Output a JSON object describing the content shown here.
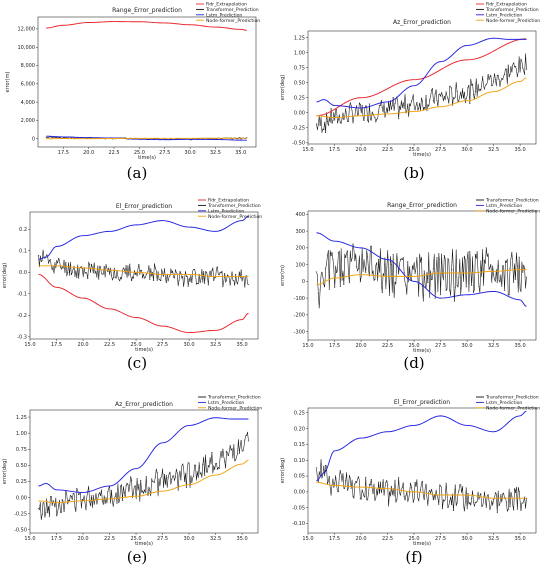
{
  "colors": {
    "rdr": "#e8232a",
    "transformer": "#111111",
    "lstm": "#2424e0",
    "nodeformer": "#f2a20c"
  },
  "chart_data": [
    {
      "caption": "(a)",
      "type": "line",
      "title": "Range_Error_prediction",
      "xlabel": "time(s)",
      "ylabel": "error(m)",
      "xlim": [
        15,
        36.5
      ],
      "ylim": [
        -900,
        13300
      ],
      "xticks": [
        "17.5",
        "20.0",
        "22.5",
        "25.0",
        "27.5",
        "30.0",
        "32.5",
        "35.0"
      ],
      "xtick_values": [
        17.5,
        20.0,
        22.5,
        25.0,
        27.5,
        30.0,
        32.5,
        35.0
      ],
      "yticks": [
        "0",
        "2,000",
        "4,000",
        "6,000",
        "8,000",
        "10,000",
        "12,000"
      ],
      "ytick_values": [
        0,
        2000,
        4000,
        6000,
        8000,
        10000,
        12000
      ],
      "legend": {
        "position": "top-right",
        "entries": [
          "Rdr_Extrapolation",
          "Transformer_Prediction",
          "Lstm_Prediction",
          "Node-former_Prediction"
        ]
      },
      "series": [
        {
          "name": "Rdr_Extrapolation",
          "color_key": "rdr",
          "kind": "smooth",
          "x": [
            15.8,
            17.5,
            20,
            22.5,
            25,
            27.5,
            30,
            32.5,
            35,
            35.6
          ],
          "y": [
            12100,
            12400,
            12700,
            12800,
            12780,
            12650,
            12450,
            12200,
            11950,
            11850
          ]
        },
        {
          "name": "Transformer_Prediction",
          "color_key": "transformer",
          "kind": "noisy",
          "seed": 3,
          "amp": 110,
          "x": [
            15.8,
            17.5,
            20,
            22.5,
            25,
            27.5,
            30,
            32.5,
            35,
            35.6
          ],
          "y": [
            200,
            100,
            80,
            50,
            0,
            -50,
            -40,
            20,
            40,
            40
          ]
        },
        {
          "name": "Lstm_Prediction",
          "color_key": "lstm",
          "kind": "smooth",
          "x": [
            15.8,
            17.5,
            20,
            22.5,
            25,
            27.5,
            30,
            32.5,
            35,
            35.6
          ],
          "y": [
            280,
            200,
            120,
            80,
            -50,
            -100,
            -60,
            -80,
            -150,
            -160
          ]
        },
        {
          "name": "Node-former_Prediction",
          "color_key": "nodeformer",
          "kind": "smooth",
          "x": [
            15.8,
            17.5,
            20,
            22.5,
            25,
            27.5,
            30,
            32.5,
            35,
            35.6
          ],
          "y": [
            0,
            20,
            10,
            30,
            40,
            50,
            50,
            55,
            60,
            60
          ]
        }
      ]
    },
    {
      "caption": "(b)",
      "type": "line",
      "title": "Az_Error_prediction",
      "xlabel": "time(s)",
      "ylabel": "error(deg)",
      "xlim": [
        15,
        36.5
      ],
      "ylim": [
        -0.52,
        1.36
      ],
      "xticks": [
        "15.0",
        "17.5",
        "20.0",
        "22.5",
        "25.0",
        "27.5",
        "30.0",
        "32.5",
        "35.0"
      ],
      "xtick_values": [
        15.0,
        17.5,
        20.0,
        22.5,
        25.0,
        27.5,
        30.0,
        32.5,
        35.0
      ],
      "yticks": [
        "-0.50",
        "-0.25",
        "0.00",
        "0.25",
        "0.50",
        "0.75",
        "1.00",
        "1.25"
      ],
      "ytick_values": [
        -0.5,
        -0.25,
        0,
        0.25,
        0.5,
        0.75,
        1.0,
        1.25
      ],
      "legend": {
        "position": "top-right",
        "entries": [
          "Rdr_Extrapolation",
          "Transformer_Prediction",
          "Lstm_Prediction",
          "Node-former_Prediction"
        ]
      },
      "series": [
        {
          "name": "Rdr_Extrapolation",
          "color_key": "rdr",
          "kind": "smooth",
          "x": [
            15.8,
            20,
            25,
            30,
            35.6
          ],
          "y": [
            -0.05,
            0.25,
            0.55,
            0.88,
            1.23
          ]
        },
        {
          "name": "Transformer_Prediction",
          "color_key": "transformer",
          "kind": "noisy",
          "seed": 7,
          "amp": 0.22,
          "x": [
            15.8,
            17.5,
            20,
            22.5,
            25,
            27.5,
            30,
            32.5,
            35,
            35.6
          ],
          "y": [
            -0.2,
            -0.08,
            0.0,
            0.05,
            0.15,
            0.25,
            0.35,
            0.55,
            0.75,
            0.85
          ]
        },
        {
          "name": "Lstm_Prediction",
          "color_key": "lstm",
          "kind": "smooth",
          "x": [
            15.8,
            16.5,
            17.5,
            20,
            22.5,
            25,
            27.5,
            30,
            32.5,
            34,
            35.6
          ],
          "y": [
            0.18,
            0.22,
            0.12,
            0.08,
            0.18,
            0.45,
            0.85,
            1.12,
            1.24,
            1.22,
            1.22
          ]
        },
        {
          "name": "Node-former_Prediction",
          "color_key": "nodeformer",
          "kind": "smooth",
          "x": [
            15.8,
            17.5,
            20,
            22.5,
            25,
            27.5,
            30,
            32.5,
            35,
            35.6
          ],
          "y": [
            -0.05,
            -0.08,
            -0.05,
            -0.02,
            0.02,
            0.1,
            0.2,
            0.35,
            0.52,
            0.58
          ]
        }
      ]
    },
    {
      "caption": "(c)",
      "type": "line",
      "title": "El_Error_prediction",
      "xlabel": "time(s)",
      "ylabel": "error(deg)",
      "xlim": [
        15,
        36.5
      ],
      "ylim": [
        -0.31,
        0.28
      ],
      "xticks": [
        "15.0",
        "17.5",
        "20.0",
        "22.5",
        "25.0",
        "27.5",
        "30.0",
        "32.5",
        "35.0"
      ],
      "xtick_values": [
        15.0,
        17.5,
        20.0,
        22.5,
        25.0,
        27.5,
        30.0,
        32.5,
        35.0
      ],
      "yticks": [
        "-0.3",
        "-0.2",
        "-0.1",
        "0.0",
        "0.1",
        "0.2"
      ],
      "ytick_values": [
        -0.3,
        -0.2,
        -0.1,
        0.0,
        0.1,
        0.2
      ],
      "legend": {
        "position": "top-right",
        "entries": [
          "Rdr_Extrapolation",
          "Transformer_Prediction",
          "Lstm_Prediction",
          "Node-former_Prediction"
        ]
      },
      "series": [
        {
          "name": "Rdr_Extrapolation",
          "color_key": "rdr",
          "kind": "smooth",
          "x": [
            15.8,
            17.5,
            20,
            22.5,
            25,
            27.5,
            30,
            32.5,
            35,
            35.6
          ],
          "y": [
            -0.01,
            -0.07,
            -0.12,
            -0.17,
            -0.21,
            -0.25,
            -0.28,
            -0.27,
            -0.22,
            -0.19
          ]
        },
        {
          "name": "Transformer_Prediction",
          "color_key": "transformer",
          "kind": "noisy",
          "seed": 11,
          "amp": 0.05,
          "x": [
            15.8,
            16.2,
            17.5,
            20,
            22.5,
            25,
            27.5,
            30,
            32.5,
            35,
            35.6
          ],
          "y": [
            0.05,
            0.07,
            0.03,
            0.01,
            0.0,
            0.0,
            -0.01,
            -0.02,
            -0.02,
            -0.03,
            -0.03
          ]
        },
        {
          "name": "Lstm_Prediction",
          "color_key": "lstm",
          "kind": "smooth",
          "x": [
            15.8,
            16.5,
            17.5,
            20,
            22.5,
            25,
            27.5,
            30,
            32.5,
            35,
            35.6
          ],
          "y": [
            0.06,
            0.07,
            0.12,
            0.17,
            0.19,
            0.22,
            0.24,
            0.21,
            0.19,
            0.24,
            0.26
          ]
        },
        {
          "name": "Node-former_Prediction",
          "color_key": "nodeformer",
          "kind": "smooth",
          "x": [
            15.8,
            17.5,
            20,
            22.5,
            25,
            27.5,
            30,
            32.5,
            35,
            35.6
          ],
          "y": [
            0.03,
            0.03,
            0.02,
            0.01,
            0.0,
            -0.01,
            -0.01,
            -0.02,
            -0.02,
            -0.02
          ]
        }
      ]
    },
    {
      "caption": "(d)",
      "type": "line",
      "title": "Range_Error_prediction",
      "xlabel": "time(s)",
      "ylabel": "error(m)",
      "xlim": [
        15,
        36.5
      ],
      "ylim": [
        -350,
        420
      ],
      "xticks": [
        "15.0",
        "17.5",
        "20.0",
        "22.5",
        "25.0",
        "27.5",
        "30.0",
        "32.5",
        "35.0"
      ],
      "xtick_values": [
        15.0,
        17.5,
        20.0,
        22.5,
        25.0,
        27.5,
        30.0,
        32.5,
        35.0
      ],
      "yticks": [
        "-300",
        "-200",
        "-100",
        "0",
        "100",
        "200",
        "300",
        "400"
      ],
      "ytick_values": [
        -300,
        -200,
        -100,
        0,
        100,
        200,
        300,
        400
      ],
      "legend": {
        "position": "top-right",
        "entries": [
          "Transformer_Prediction",
          "Lstm_Prediction",
          "Node-former_Prediction"
        ]
      },
      "series": [
        {
          "name": "Transformer_Prediction",
          "color_key": "transformer",
          "kind": "noisy",
          "seed": 5,
          "amp": 170,
          "x": [
            15.8,
            17.5,
            20,
            22.5,
            25,
            27.5,
            30,
            32.5,
            35,
            35.6
          ],
          "y": [
            -50,
            80,
            120,
            60,
            20,
            40,
            50,
            60,
            40,
            30
          ]
        },
        {
          "name": "Lstm_Prediction",
          "color_key": "lstm",
          "kind": "smooth",
          "x": [
            15.8,
            17.5,
            20,
            22.5,
            25,
            27.5,
            30,
            32.5,
            35,
            35.6
          ],
          "y": [
            290,
            240,
            200,
            130,
            0,
            -100,
            -80,
            -60,
            -110,
            -150
          ]
        },
        {
          "name": "Node-former_Prediction",
          "color_key": "nodeformer",
          "kind": "smooth",
          "x": [
            15.8,
            17.5,
            20,
            22.5,
            25,
            27.5,
            30,
            32.5,
            35,
            35.6
          ],
          "y": [
            -20,
            20,
            40,
            30,
            30,
            50,
            50,
            60,
            70,
            70
          ]
        }
      ]
    },
    {
      "caption": "(e)",
      "type": "line",
      "title": "Az_Error_prediction",
      "xlabel": "time(s)",
      "ylabel": "error(deg)",
      "xlim": [
        15,
        36.5
      ],
      "ylim": [
        -0.55,
        1.36
      ],
      "xticks": [
        "15.0",
        "17.5",
        "20.0",
        "22.5",
        "25.0",
        "27.5",
        "30.0",
        "32.5",
        "35.0"
      ],
      "xtick_values": [
        15.0,
        17.5,
        20.0,
        22.5,
        25.0,
        27.5,
        30.0,
        32.5,
        35.0
      ],
      "yticks": [
        "-0.50",
        "-0.25",
        "0.00",
        "0.25",
        "0.50",
        "0.75",
        "1.00",
        "1.25"
      ],
      "ytick_values": [
        -0.5,
        -0.25,
        0,
        0.25,
        0.5,
        0.75,
        1.0,
        1.25
      ],
      "legend": {
        "position": "top-right",
        "entries": [
          "Transformer_Prediction",
          "Lstm_Prediction",
          "Node-former_Prediction"
        ]
      },
      "series": [
        {
          "name": "Transformer_Prediction",
          "color_key": "transformer",
          "kind": "noisy",
          "seed": 13,
          "amp": 0.22,
          "x": [
            15.8,
            17.5,
            20,
            22.5,
            25,
            27.5,
            30,
            32.5,
            35,
            35.6
          ],
          "y": [
            -0.2,
            -0.08,
            0.0,
            0.05,
            0.15,
            0.25,
            0.35,
            0.55,
            0.75,
            0.85
          ]
        },
        {
          "name": "Lstm_Prediction",
          "color_key": "lstm",
          "kind": "smooth",
          "x": [
            15.8,
            16.5,
            17.5,
            20,
            22.5,
            25,
            27.5,
            30,
            32.5,
            34,
            35.6
          ],
          "y": [
            0.18,
            0.22,
            0.12,
            0.08,
            0.18,
            0.45,
            0.85,
            1.12,
            1.24,
            1.22,
            1.22
          ]
        },
        {
          "name": "Node-former_Prediction",
          "color_key": "nodeformer",
          "kind": "smooth",
          "x": [
            15.8,
            17.5,
            20,
            22.5,
            25,
            27.5,
            30,
            32.5,
            35,
            35.6
          ],
          "y": [
            -0.05,
            -0.08,
            -0.05,
            -0.02,
            0.02,
            0.1,
            0.2,
            0.35,
            0.52,
            0.58
          ]
        }
      ]
    },
    {
      "caption": "(f)",
      "type": "line",
      "title": "El_Error_prediction",
      "xlabel": "time(s)",
      "ylabel": "error(deg)",
      "xlim": [
        15,
        36.5
      ],
      "ylim": [
        -0.13,
        0.265
      ],
      "xticks": [
        "15.0",
        "17.5",
        "20.0",
        "22.5",
        "25.0",
        "27.5",
        "30.0",
        "32.5",
        "35.0"
      ],
      "xtick_values": [
        15.0,
        17.5,
        20.0,
        22.5,
        25.0,
        27.5,
        30.0,
        32.5,
        35.0
      ],
      "yticks": [
        "-0.10",
        "-0.05",
        "0.00",
        "0.05",
        "0.10",
        "0.15",
        "0.20",
        "0.25"
      ],
      "ytick_values": [
        -0.1,
        -0.05,
        0,
        0.05,
        0.1,
        0.15,
        0.2,
        0.25
      ],
      "legend": {
        "position": "top-right",
        "entries": [
          "Transformer_Prediction",
          "Lstm_Prediction",
          "Node-former_Prediction"
        ]
      },
      "series": [
        {
          "name": "Transformer_Prediction",
          "color_key": "transformer",
          "kind": "noisy",
          "seed": 17,
          "amp": 0.05,
          "x": [
            15.8,
            16.2,
            17.5,
            20,
            22.5,
            25,
            27.5,
            30,
            32.5,
            35,
            35.6
          ],
          "y": [
            0.05,
            0.07,
            0.03,
            0.01,
            0.0,
            0.0,
            -0.01,
            -0.02,
            -0.02,
            -0.03,
            -0.03
          ]
        },
        {
          "name": "Lstm_Prediction",
          "color_key": "lstm",
          "kind": "smooth",
          "x": [
            15.8,
            16.5,
            17.5,
            20,
            22.5,
            25,
            27.5,
            30,
            32.5,
            35,
            35.6
          ],
          "y": [
            0.035,
            0.06,
            0.13,
            0.17,
            0.19,
            0.21,
            0.24,
            0.21,
            0.19,
            0.24,
            0.255
          ]
        },
        {
          "name": "Node-former_Prediction",
          "color_key": "nodeformer",
          "kind": "smooth",
          "x": [
            15.8,
            17.5,
            20,
            22.5,
            25,
            27.5,
            30,
            32.5,
            35,
            35.6
          ],
          "y": [
            0.03,
            0.02,
            0.015,
            0.01,
            0.0,
            -0.01,
            -0.01,
            -0.02,
            -0.02,
            -0.02
          ]
        }
      ]
    }
  ]
}
